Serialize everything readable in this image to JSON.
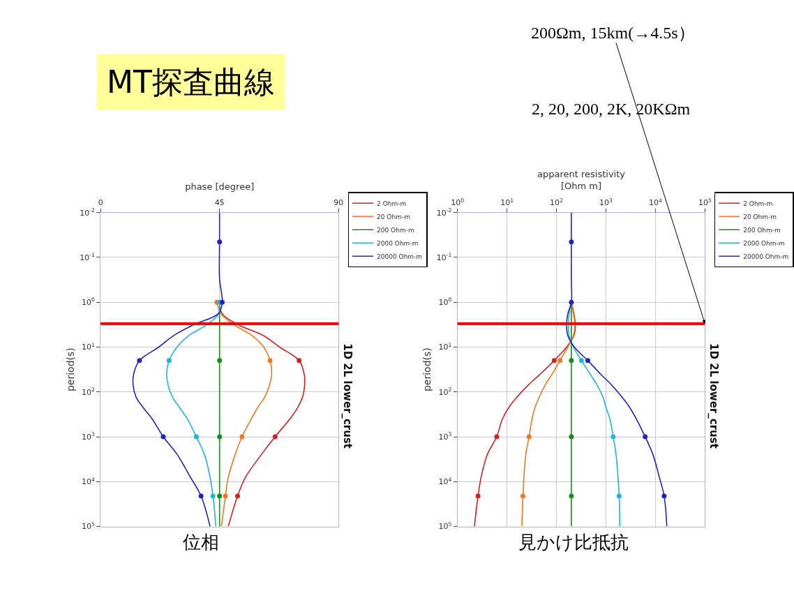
{
  "chart_data": [
    {
      "type": "line",
      "title": "1D 2L lower_crust",
      "xlabel": "phase [degree]",
      "ylabel": "period(s)",
      "xlim": [
        0,
        90
      ],
      "xticks": [
        0,
        45,
        90
      ],
      "ylim": [
        100000,
        0.01
      ],
      "yticks": [
        {
          "value": 0.01,
          "label": "10$^{-2}$"
        },
        {
          "value": 0.1,
          "label": "10$^{-1}$"
        },
        {
          "value": 1,
          "label": "10$^{0}$"
        },
        {
          "value": 10,
          "label": "10$^{1}$"
        },
        {
          "value": 100,
          "label": "10$^{2}$"
        },
        {
          "value": 1000,
          "label": "10$^{3}$"
        },
        {
          "value": 10000,
          "label": "10$^{4}$"
        },
        {
          "value": 100000,
          "label": "10$^{5}$"
        }
      ],
      "log": "y",
      "grid": true,
      "legend": "top right",
      "ref_lines": [
        {
          "axis": "y",
          "value": 3,
          "color": "#ff0000"
        }
      ],
      "annotations": [
        "MT探査曲線",
        "位相"
      ],
      "series": [
        {
          "name": "2 Ohm-m",
          "color": "#d42020",
          "marker": "none",
          "x": [
            45,
            46,
            52.2,
            61.7,
            67.7,
            75.1,
            77,
            77.2,
            76.4,
            74.6,
            71.6,
            66,
            60.8,
            54.8,
            51.8,
            48.3
          ],
          "values": [
            1,
            1.8,
            3.2,
            5.6,
            10,
            20,
            40,
            70,
            130,
            220,
            400,
            1000,
            2500,
            8000,
            21000,
            100000
          ]
        },
        {
          "name": "20 Ohm-m",
          "color": "#f07820",
          "marker": "none",
          "x": [
            44,
            45.5,
            50.5,
            57.4,
            61.7,
            64.1,
            64.7,
            63.9,
            62.1,
            59.5,
            57,
            53.5,
            50.9,
            48.3,
            47.2,
            45.7
          ],
          "values": [
            1,
            1.8,
            3.2,
            5.6,
            10,
            20,
            40,
            70,
            130,
            220,
            400,
            1000,
            2500,
            8000,
            21000,
            100000
          ]
        },
        {
          "name": "200 Ohm-m",
          "color": "#1a8c1a",
          "marker": "none",
          "x": [
            45,
            45,
            45,
            45,
            45,
            45,
            45,
            45,
            45,
            45,
            45,
            45,
            45,
            45,
            45,
            45
          ],
          "values": [
            1,
            1.8,
            3.2,
            5.6,
            10,
            20,
            40,
            70,
            130,
            220,
            400,
            1000,
            2500,
            8000,
            21000,
            100000
          ]
        },
        {
          "name": "2000 Ohm-m",
          "color": "#1fb4e0",
          "marker": "none",
          "x": [
            45,
            44.7,
            40.1,
            33.2,
            28.9,
            25.9,
            25,
            25.5,
            27.2,
            29.8,
            32.8,
            36.2,
            39.3,
            41.4,
            42.5,
            43.6
          ],
          "values": [
            1,
            1.8,
            3.2,
            5.6,
            10,
            20,
            40,
            70,
            130,
            220,
            400,
            1000,
            2500,
            8000,
            21000,
            100000
          ]
        },
        {
          "name": "20000 Ohm-m",
          "color": "#2323b8",
          "marker": "none",
          "x": [
            45,
            45,
            45,
            46,
            44.5,
            35,
            27.5,
            22,
            14.7,
            12.5,
            12.3,
            13.4,
            16,
            19.5,
            23.7,
            29,
            34,
            38,
            41.4
          ],
          "values": [
            0.01,
            0.045,
            0.3,
            1,
            1.8,
            3.2,
            5.6,
            10,
            20,
            40,
            70,
            130,
            220,
            400,
            1000,
            2500,
            8000,
            21000,
            100000
          ]
        },
        {
          "color": "#d42020",
          "type": "scatter",
          "marker": "circle",
          "x": [
            75.1,
            66,
            51.8
          ],
          "values": [
            20,
            1000,
            21000
          ]
        },
        {
          "color": "#f07820",
          "type": "scatter",
          "marker": "circle",
          "x": [
            44,
            64.1,
            53.5,
            47.2
          ],
          "values": [
            1,
            20,
            1000,
            21000
          ]
        },
        {
          "color": "#1a8c1a",
          "type": "scatter",
          "marker": "circle",
          "x": [
            45,
            45,
            45
          ],
          "values": [
            20,
            1000,
            21000
          ]
        },
        {
          "color": "#1fb4e0",
          "type": "scatter",
          "marker": "circle",
          "x": [
            45,
            25.9,
            36.2,
            42.5
          ],
          "values": [
            1,
            20,
            1000,
            21000
          ]
        },
        {
          "color": "#2323b8",
          "type": "scatter",
          "marker": "circle",
          "x": [
            45,
            46,
            14.7,
            23.7,
            38
          ],
          "values": [
            0.045,
            1,
            20,
            1000,
            21000
          ]
        }
      ]
    },
    {
      "type": "line",
      "title": "1D 2L lower_crust",
      "xlabel": "apparent resistivity\n[Ohm m]",
      "ylabel": "period(s)",
      "xlim": [
        1,
        100000
      ],
      "xticks": [
        {
          "value": 1,
          "label": "10$^{0}$"
        },
        {
          "value": 10,
          "label": "10$^{1}$"
        },
        {
          "value": 100,
          "label": "10$^{2}$"
        },
        {
          "value": 1000,
          "label": "10$^{3}$"
        },
        {
          "value": 10000,
          "label": "10$^{4}$"
        },
        {
          "value": 100000,
          "label": "10$^{5}$"
        }
      ],
      "ylim": [
        100000,
        0.01
      ],
      "yticks": [
        {
          "value": 0.01,
          "label": "10$^{-2}$"
        },
        {
          "value": 0.1,
          "label": "10$^{-1}$"
        },
        {
          "value": 1,
          "label": "10$^{0}$"
        },
        {
          "value": 10,
          "label": "10$^{1}$"
        },
        {
          "value": 100,
          "label": "10$^{2}$"
        },
        {
          "value": 1000,
          "label": "10$^{3}$"
        },
        {
          "value": 10000,
          "label": "10$^{4}$"
        },
        {
          "value": 100000,
          "label": "10$^{5}$"
        }
      ],
      "log": "xy",
      "grid": true,
      "legend": "top right",
      "ref_lines": [
        {
          "axis": "y",
          "value": 3,
          "color": "#ff0000"
        }
      ],
      "annotations": [
        {
          "text": "200Ωm, 15km(→4.5s）",
          "x": 100000,
          "y": 3
        },
        "2, 20, 200, 2K, 20KΩm",
        "見かけ比抵抗"
      ],
      "series": [
        {
          "name": "2 Ohm-m",
          "color": "#d42020",
          "marker": "none",
          "x": [
            200,
            225,
            240,
            225,
            160,
            90,
            47,
            27,
            16,
            11,
            8.1,
            6.2,
            4,
            3,
            2.6,
            2.2
          ],
          "values": [
            1,
            1.8,
            3.2,
            5.6,
            10,
            20,
            40,
            70,
            130,
            220,
            400,
            1000,
            2500,
            8000,
            21000,
            100000
          ]
        },
        {
          "name": "20 Ohm-m",
          "color": "#f07820",
          "marker": "none",
          "x": [
            200,
            220,
            235,
            220,
            170,
            118,
            82,
            59,
            45,
            37,
            32,
            28,
            24,
            22,
            21,
            20
          ],
          "values": [
            1,
            1.8,
            3.2,
            5.6,
            10,
            20,
            40,
            70,
            130,
            220,
            400,
            1000,
            2500,
            8000,
            21000,
            100000
          ]
        },
        {
          "name": "200 Ohm-m",
          "color": "#1a8c1a",
          "marker": "none",
          "x": [
            200,
            200,
            200,
            200,
            200,
            200,
            200,
            200,
            200,
            200,
            200,
            200,
            200,
            200,
            200,
            200
          ],
          "values": [
            1,
            1.8,
            3.2,
            5.6,
            10,
            20,
            40,
            70,
            130,
            220,
            400,
            1000,
            2500,
            8000,
            21000,
            100000
          ]
        },
        {
          "name": "2000 Ohm-m",
          "color": "#1fb4e0",
          "marker": "none",
          "x": [
            200,
            180,
            175,
            180,
            220,
            320,
            480,
            660,
            870,
            1000,
            1200,
            1400,
            1600,
            1750,
            1850,
            1900
          ],
          "values": [
            1,
            1.8,
            3.2,
            5.6,
            10,
            20,
            40,
            70,
            130,
            220,
            400,
            1000,
            2500,
            8000,
            21000,
            100000
          ]
        },
        {
          "name": "20000 Ohm-m",
          "color": "#2323b8",
          "marker": "none",
          "x": [
            200,
            200,
            200,
            200,
            170,
            160,
            170,
            230,
            430,
            780,
            1300,
            2100,
            3000,
            4100,
            6200,
            8900,
            12000,
            15000,
            17000
          ],
          "values": [
            0.01,
            0.045,
            0.3,
            1,
            1.8,
            3.2,
            5.6,
            10,
            20,
            40,
            70,
            130,
            220,
            400,
            1000,
            2500,
            8000,
            21000,
            100000
          ]
        },
        {
          "color": "#d42020",
          "type": "scatter",
          "marker": "circle",
          "x": [
            90,
            6.2,
            2.6
          ],
          "values": [
            20,
            1000,
            21000
          ]
        },
        {
          "color": "#f07820",
          "type": "scatter",
          "marker": "circle",
          "x": [
            118,
            28,
            21
          ],
          "values": [
            20,
            1000,
            21000
          ]
        },
        {
          "color": "#1a8c1a",
          "type": "scatter",
          "marker": "circle",
          "x": [
            200,
            200,
            200
          ],
          "values": [
            20,
            1000,
            21000
          ]
        },
        {
          "color": "#1fb4e0",
          "type": "scatter",
          "marker": "circle",
          "x": [
            320,
            1400,
            1850
          ],
          "values": [
            20,
            1000,
            21000
          ]
        },
        {
          "color": "#2323b8",
          "type": "scatter",
          "marker": "circle",
          "x": [
            200,
            200,
            430,
            6200,
            15000
          ],
          "values": [
            0.045,
            1,
            20,
            1000,
            21000
          ]
        }
      ]
    }
  ]
}
